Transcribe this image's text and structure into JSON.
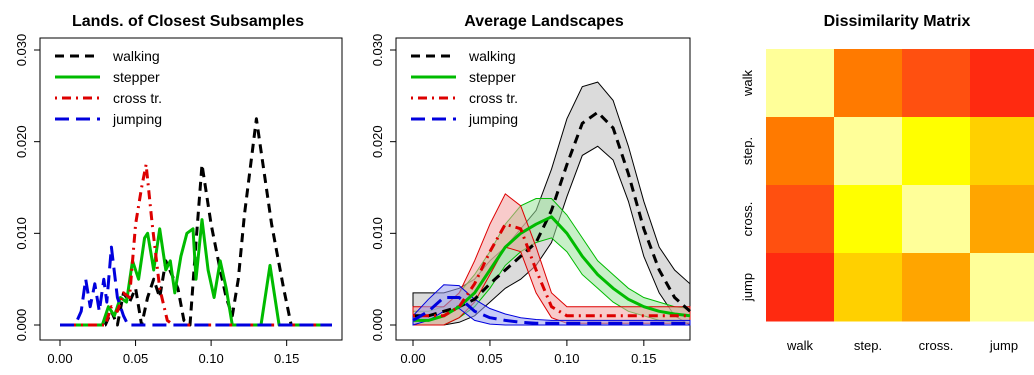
{
  "chart_data": [
    {
      "type": "line",
      "title": "Lands. of Closest Subsamples",
      "xlabel": "",
      "ylabel": "",
      "xlim": [
        0.0,
        0.18
      ],
      "ylim": [
        0.0,
        0.0315
      ],
      "x_ticks": [
        "0.00",
        "0.05",
        "0.10",
        "0.15"
      ],
      "x_tick_values": [
        0.0,
        0.05,
        0.1,
        0.15
      ],
      "y_ticks": [
        "0.000",
        "0.010",
        "0.020",
        "0.030"
      ],
      "y_tick_values": [
        0.0,
        0.01,
        0.02,
        0.03
      ],
      "legend_position": "top-left",
      "series": [
        {
          "name": "walking",
          "color": "#000000",
          "dash": "dashed",
          "points": [
            [
              0.0,
              0
            ],
            [
              0.03,
              0
            ],
            [
              0.034,
              0.0015
            ],
            [
              0.038,
              0
            ],
            [
              0.042,
              0.0035
            ],
            [
              0.046,
              0.0025
            ],
            [
              0.05,
              0.004
            ],
            [
              0.054,
              0
            ],
            [
              0.058,
              0.003
            ],
            [
              0.062,
              0.005
            ],
            [
              0.066,
              0.003
            ],
            [
              0.07,
              0.007
            ],
            [
              0.074,
              0.0055
            ],
            [
              0.078,
              0.004
            ],
            [
              0.082,
              0.0005
            ],
            [
              0.086,
              0
            ],
            [
              0.09,
              0.009
            ],
            [
              0.094,
              0.0175
            ],
            [
              0.1,
              0.011
            ],
            [
              0.106,
              0.006
            ],
            [
              0.11,
              0.003
            ],
            [
              0.114,
              0.001
            ],
            [
              0.118,
              0.005
            ],
            [
              0.122,
              0.012
            ],
            [
              0.13,
              0.0225
            ],
            [
              0.14,
              0.011
            ],
            [
              0.148,
              0.004
            ],
            [
              0.153,
              0
            ],
            [
              0.18,
              0
            ]
          ]
        },
        {
          "name": "stepper",
          "color": "#00bb00",
          "dash": "solid",
          "points": [
            [
              0.0,
              0
            ],
            [
              0.028,
              0
            ],
            [
              0.032,
              0.002
            ],
            [
              0.036,
              0.001
            ],
            [
              0.04,
              0.003
            ],
            [
              0.044,
              0.0025
            ],
            [
              0.048,
              0.007
            ],
            [
              0.052,
              0.005
            ],
            [
              0.056,
              0.0095
            ],
            [
              0.058,
              0.01
            ],
            [
              0.06,
              0.008
            ],
            [
              0.062,
              0.006
            ],
            [
              0.066,
              0.0105
            ],
            [
              0.07,
              0.006
            ],
            [
              0.073,
              0.007
            ],
            [
              0.076,
              0.0035
            ],
            [
              0.08,
              0.0075
            ],
            [
              0.084,
              0.01
            ],
            [
              0.088,
              0.0105
            ],
            [
              0.09,
              0.005
            ],
            [
              0.094,
              0.0115
            ],
            [
              0.098,
              0.006
            ],
            [
              0.102,
              0.003
            ],
            [
              0.106,
              0.007
            ],
            [
              0.11,
              0.004
            ],
            [
              0.114,
              0
            ],
            [
              0.133,
              0
            ],
            [
              0.139,
              0.0065
            ],
            [
              0.145,
              0
            ],
            [
              0.18,
              0
            ]
          ]
        },
        {
          "name": "cross tr.",
          "color": "#dd0000",
          "dash": "dotdash",
          "points": [
            [
              0.0,
              0
            ],
            [
              0.03,
              0
            ],
            [
              0.034,
              0.002
            ],
            [
              0.038,
              0.0015
            ],
            [
              0.042,
              0.0035
            ],
            [
              0.046,
              0.003
            ],
            [
              0.05,
              0.011
            ],
            [
              0.054,
              0.015
            ],
            [
              0.057,
              0.0175
            ],
            [
              0.061,
              0.011
            ],
            [
              0.066,
              0.004
            ],
            [
              0.071,
              0.0005
            ],
            [
              0.075,
              0
            ],
            [
              0.18,
              0
            ]
          ]
        },
        {
          "name": "jumping",
          "color": "#0000dd",
          "dash": "longdash",
          "points": [
            [
              0.0,
              0
            ],
            [
              0.01,
              0
            ],
            [
              0.014,
              0.0015
            ],
            [
              0.017,
              0.005
            ],
            [
              0.02,
              0.002
            ],
            [
              0.023,
              0.0045
            ],
            [
              0.026,
              0.0015
            ],
            [
              0.029,
              0.005
            ],
            [
              0.031,
              0.0025
            ],
            [
              0.034,
              0.0085
            ],
            [
              0.038,
              0.003
            ],
            [
              0.042,
              0.001
            ],
            [
              0.045,
              0
            ],
            [
              0.18,
              0
            ]
          ]
        }
      ]
    },
    {
      "type": "line",
      "title": "Average Landscapes",
      "xlabel": "",
      "ylabel": "",
      "xlim": [
        0.0,
        0.18
      ],
      "ylim": [
        0.0,
        0.0315
      ],
      "x_ticks": [
        "0.00",
        "0.05",
        "0.10",
        "0.15"
      ],
      "x_tick_values": [
        0.0,
        0.05,
        0.1,
        0.15
      ],
      "y_ticks": [
        "0.000",
        "0.010",
        "0.020",
        "0.030"
      ],
      "y_tick_values": [
        0.0,
        0.01,
        0.02,
        0.03
      ],
      "legend_position": "top-left",
      "series": [
        {
          "name": "walking",
          "color": "#000000",
          "dash": "dashed",
          "band_fill": "#bdbdbd",
          "x": [
            0.0,
            0.01,
            0.02,
            0.03,
            0.04,
            0.05,
            0.06,
            0.07,
            0.08,
            0.09,
            0.1,
            0.11,
            0.12,
            0.13,
            0.14,
            0.15,
            0.16,
            0.17,
            0.18
          ],
          "mean": [
            0.001,
            0.001,
            0.0015,
            0.002,
            0.0028,
            0.0045,
            0.006,
            0.0075,
            0.009,
            0.0125,
            0.0175,
            0.022,
            0.0232,
            0.0215,
            0.0165,
            0.0105,
            0.006,
            0.003,
            0.0015
          ],
          "upper": [
            0.0035,
            0.0035,
            0.0035,
            0.004,
            0.005,
            0.007,
            0.0085,
            0.0105,
            0.0125,
            0.017,
            0.0225,
            0.026,
            0.0265,
            0.0245,
            0.0195,
            0.0135,
            0.0085,
            0.006,
            0.0045
          ],
          "lower": [
            0.0,
            0.0,
            0.0,
            0.0003,
            0.001,
            0.0025,
            0.004,
            0.005,
            0.0065,
            0.009,
            0.014,
            0.0185,
            0.0195,
            0.018,
            0.0135,
            0.0075,
            0.0035,
            0.001,
            0.0
          ]
        },
        {
          "name": "stepper",
          "color": "#00bb00",
          "dash": "solid",
          "band_fill": "#9be39b",
          "x": [
            0.0,
            0.01,
            0.02,
            0.03,
            0.04,
            0.05,
            0.06,
            0.07,
            0.08,
            0.09,
            0.1,
            0.11,
            0.12,
            0.13,
            0.14,
            0.15,
            0.16,
            0.17,
            0.18
          ],
          "mean": [
            0.0005,
            0.0005,
            0.001,
            0.002,
            0.0035,
            0.006,
            0.0085,
            0.01,
            0.011,
            0.0118,
            0.01,
            0.0075,
            0.0055,
            0.004,
            0.0028,
            0.002,
            0.0015,
            0.0012,
            0.001
          ],
          "upper": [
            0.0015,
            0.0015,
            0.002,
            0.0035,
            0.0055,
            0.008,
            0.011,
            0.013,
            0.0138,
            0.0138,
            0.012,
            0.0095,
            0.007,
            0.0055,
            0.004,
            0.003,
            0.0025,
            0.002,
            0.0018
          ],
          "lower": [
            0.0,
            0.0,
            0.0,
            0.0008,
            0.002,
            0.004,
            0.0065,
            0.008,
            0.009,
            0.0095,
            0.008,
            0.0055,
            0.004,
            0.0025,
            0.0015,
            0.001,
            0.0005,
            0.0003,
            0.0002
          ]
        },
        {
          "name": "cross tr.",
          "color": "#dd0000",
          "dash": "dotdash",
          "band_fill": "#f2a0a0",
          "x": [
            0.0,
            0.01,
            0.02,
            0.03,
            0.04,
            0.05,
            0.06,
            0.07,
            0.08,
            0.09,
            0.1,
            0.11,
            0.12,
            0.13,
            0.14,
            0.15,
            0.16,
            0.17,
            0.18
          ],
          "mean": [
            0.001,
            0.001,
            0.001,
            0.002,
            0.0045,
            0.008,
            0.011,
            0.0105,
            0.006,
            0.002,
            0.001,
            0.001,
            0.001,
            0.001,
            0.001,
            0.001,
            0.001,
            0.001,
            0.001
          ],
          "upper": [
            0.002,
            0.002,
            0.002,
            0.0035,
            0.007,
            0.011,
            0.0143,
            0.013,
            0.0085,
            0.0035,
            0.002,
            0.002,
            0.002,
            0.002,
            0.002,
            0.002,
            0.002,
            0.002,
            0.002
          ],
          "lower": [
            0.0,
            0.0,
            0.0,
            0.0008,
            0.0025,
            0.0055,
            0.0085,
            0.008,
            0.0035,
            0.0008,
            0.0002,
            0.0002,
            0.0002,
            0.0002,
            0.0002,
            0.0002,
            0.0002,
            0.0002,
            0.0002
          ]
        },
        {
          "name": "jumping",
          "color": "#0000dd",
          "dash": "longdash",
          "band_fill": "#9aa0f0",
          "x": [
            0.0,
            0.01,
            0.02,
            0.03,
            0.04,
            0.05,
            0.06,
            0.07,
            0.08,
            0.09,
            0.1,
            0.11,
            0.12,
            0.13,
            0.14,
            0.15,
            0.16,
            0.17,
            0.18
          ],
          "mean": [
            0.0005,
            0.0015,
            0.003,
            0.003,
            0.0015,
            0.0008,
            0.0005,
            0.0003,
            0.0002,
            0.0002,
            0.0002,
            0.0002,
            0.0002,
            0.0002,
            0.0002,
            0.0002,
            0.0002,
            0.0002,
            0.0002
          ],
          "upper": [
            0.001,
            0.0028,
            0.0044,
            0.0043,
            0.0028,
            0.0018,
            0.0012,
            0.0008,
            0.0006,
            0.0005,
            0.0005,
            0.0005,
            0.0005,
            0.0005,
            0.0005,
            0.0005,
            0.0005,
            0.0005,
            0.0005
          ],
          "lower": [
            0.0,
            0.0005,
            0.0015,
            0.0018,
            0.0005,
            0.0001,
            0.0,
            0.0,
            0.0,
            0.0,
            0.0,
            0.0,
            0.0,
            0.0,
            0.0,
            0.0,
            0.0,
            0.0,
            0.0
          ]
        }
      ]
    },
    {
      "type": "heatmap",
      "title": "Dissimilarity Matrix",
      "row_labels": [
        "walk",
        "step.",
        "cross.",
        "jump"
      ],
      "col_labels": [
        "walk",
        "step.",
        "cross.",
        "jump"
      ],
      "palette": [
        "#ffff99",
        "#ffff00",
        "#ffd000",
        "#ffa500",
        "#ff7a00",
        "#ff5010",
        "#ff2a10"
      ],
      "values": [
        [
          0,
          4,
          5,
          6
        ],
        [
          4,
          0,
          1,
          2
        ],
        [
          5,
          1,
          0,
          3
        ],
        [
          6,
          2,
          3,
          0
        ]
      ]
    }
  ]
}
